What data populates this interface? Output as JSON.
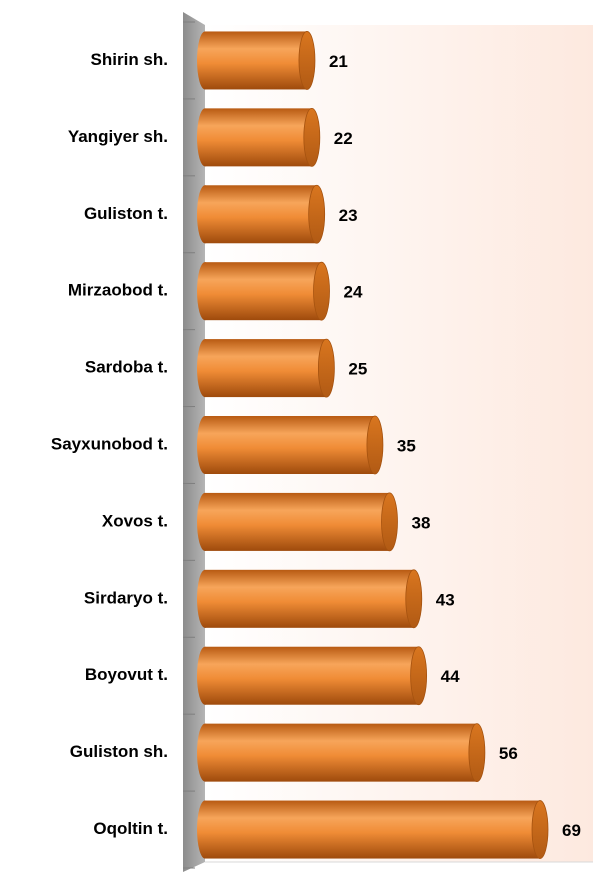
{
  "chart_data": {
    "type": "bar",
    "orientation": "horizontal",
    "categories": [
      "Shirin sh.",
      "Yangiyer sh.",
      "Guliston t.",
      "Mirzaobod t.",
      "Sardoba t.",
      "Sayxunobod t.",
      "Xovos t.",
      "Sirdaryo t.",
      "Boyovut t.",
      "Guliston sh.",
      "Oqoltin t."
    ],
    "values": [
      21,
      22,
      23,
      24,
      25,
      35,
      38,
      43,
      44,
      56,
      69
    ],
    "color": "#f0913a"
  }
}
